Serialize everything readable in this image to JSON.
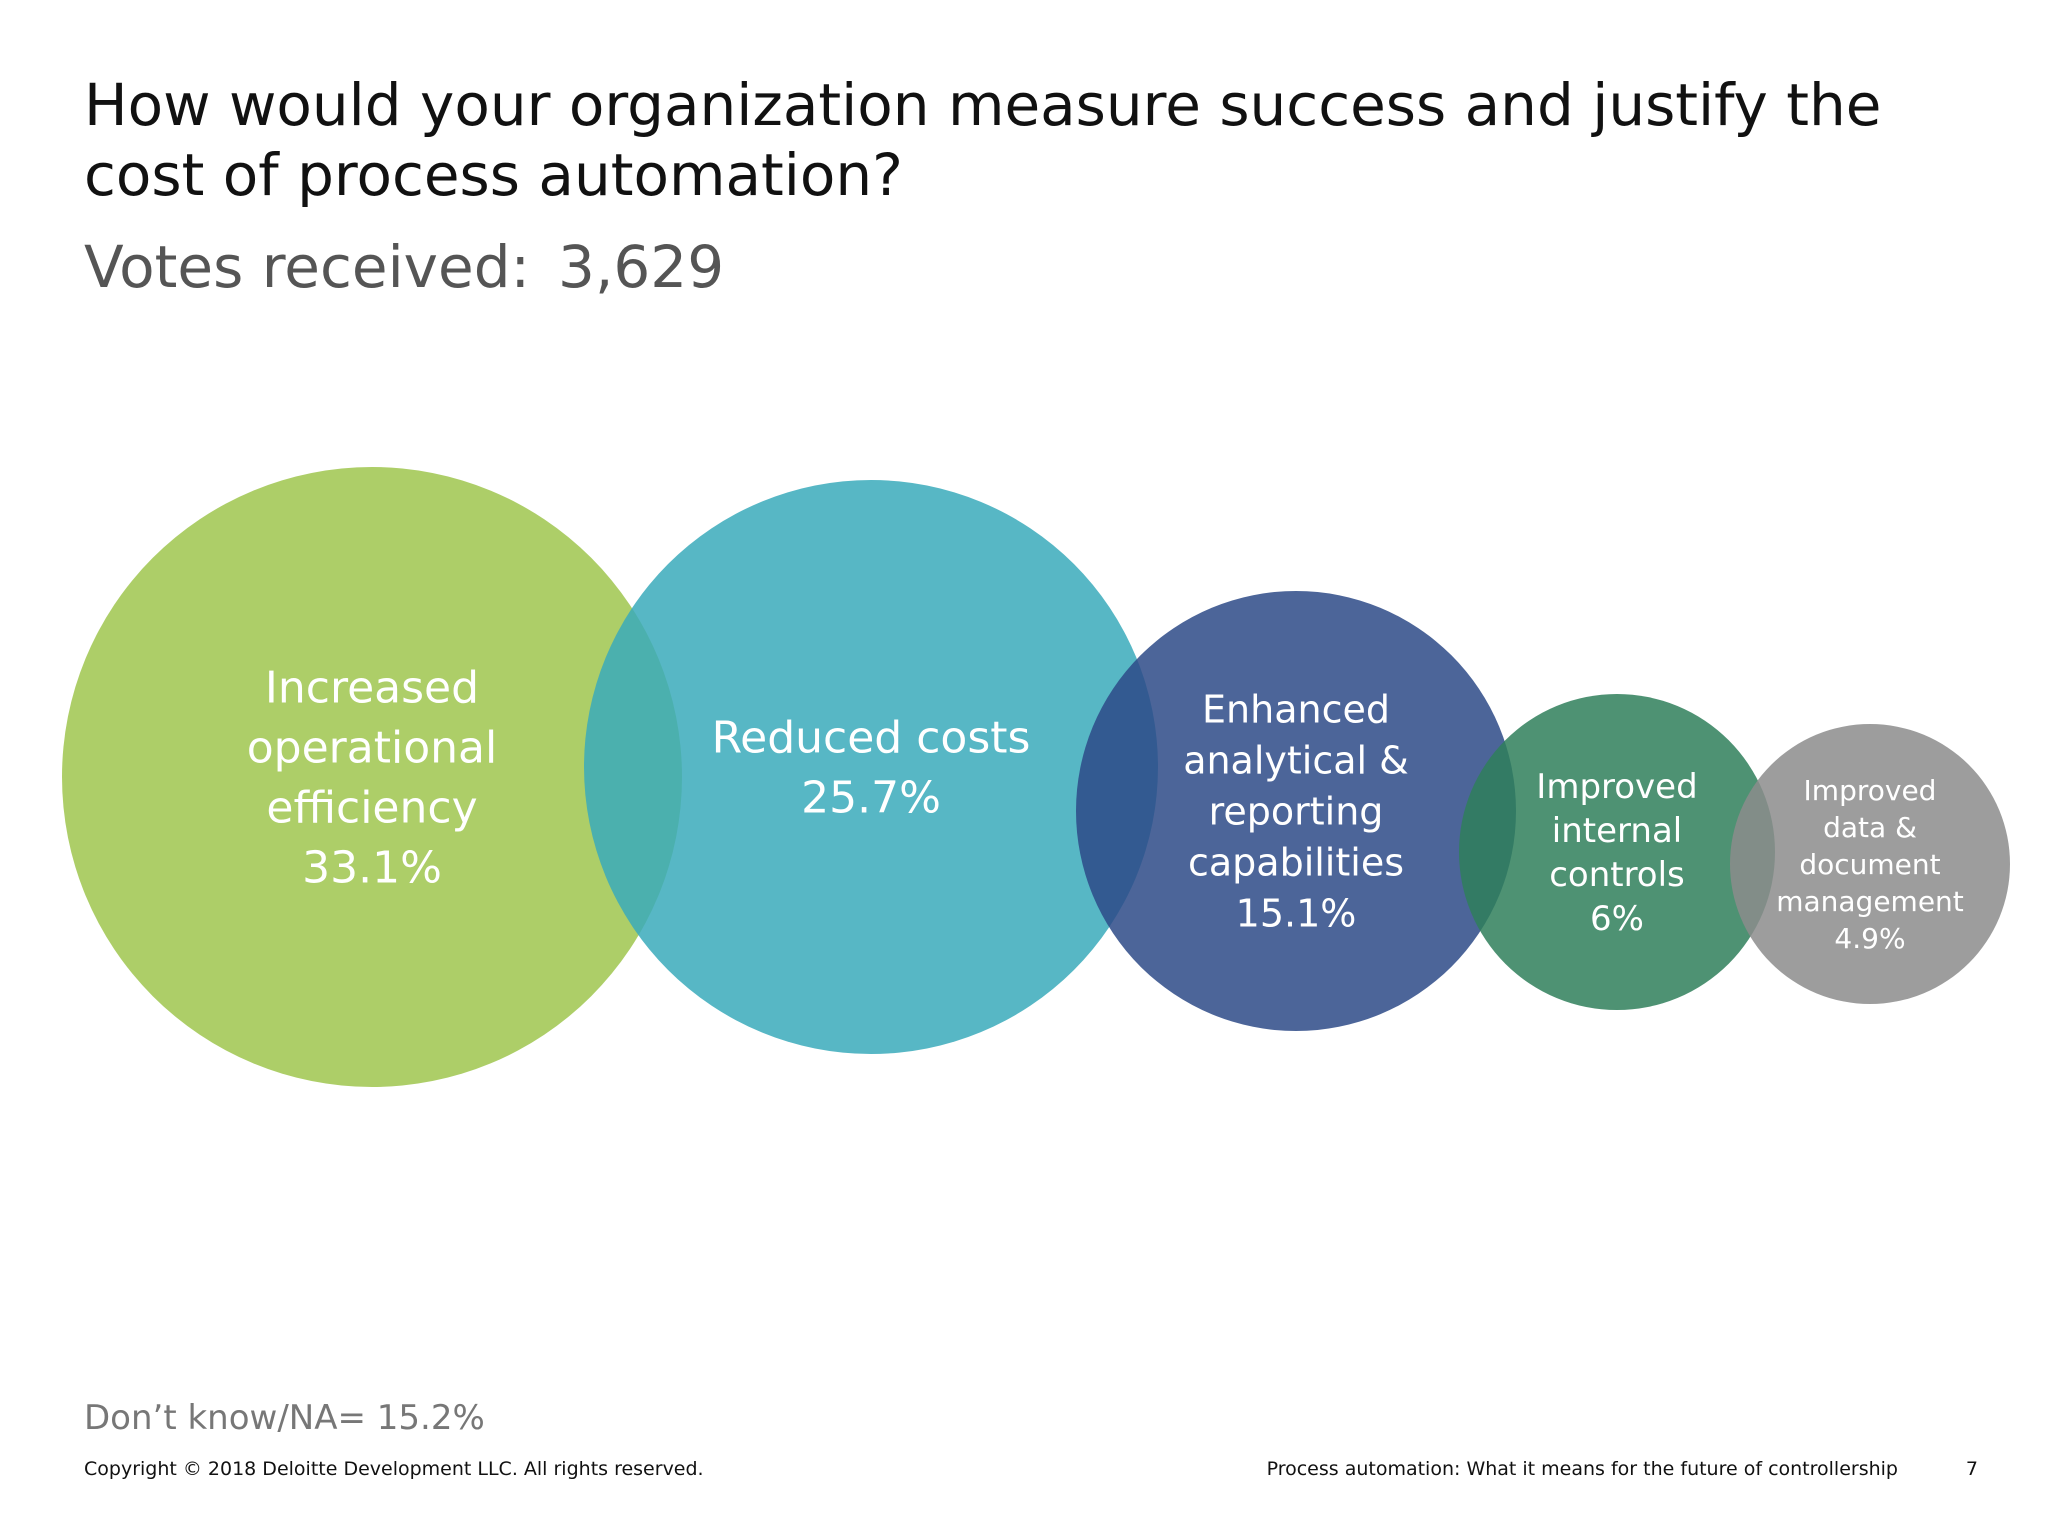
{
  "slide": {
    "title": "How would your organization measure success and justify the cost of process automation?",
    "votes_label": "Votes received:",
    "votes_value": "3,629",
    "footnote": "Don’t know/NA= 15.2%",
    "copyright": "Copyright © 2018 Deloitte Development LLC. All rights reserved.",
    "footer_title": "Process automation: What it means for the future of controllership",
    "page_number": "7"
  },
  "chart_data": {
    "type": "bubble",
    "title": "How would your organization measure success and justify the cost of process automation?",
    "categories": [
      "Increased operational efficiency",
      "Reduced costs",
      "Enhanced analytical & reporting capabilities",
      "Improved internal controls",
      "Improved data & document management"
    ],
    "values": [
      33.1,
      25.7,
      15.1,
      6,
      4.9
    ],
    "unit": "%",
    "bubbles": [
      {
        "label_lines": [
          "Increased",
          "operational",
          "efficiency"
        ],
        "value": 33.1,
        "value_label": "33.1%",
        "color": "#9fc54d"
      },
      {
        "label_lines": [
          "Reduced costs"
        ],
        "value": 25.7,
        "value_label": "25.7%",
        "color": "#3aaabb"
      },
      {
        "label_lines": [
          "Enhanced",
          "analytical &",
          "reporting",
          "capabilities"
        ],
        "value": 15.1,
        "value_label": "15.1%",
        "color": "#2d4a87"
      },
      {
        "label_lines": [
          "Improved",
          "internal",
          "controls"
        ],
        "value": 6,
        "value_label": "6%",
        "color": "#2f7f5a"
      },
      {
        "label_lines": [
          "Improved",
          "data &",
          "document",
          "management"
        ],
        "value": 4.9,
        "value_label": "4.9%",
        "color": "#8c8c8c"
      }
    ]
  }
}
